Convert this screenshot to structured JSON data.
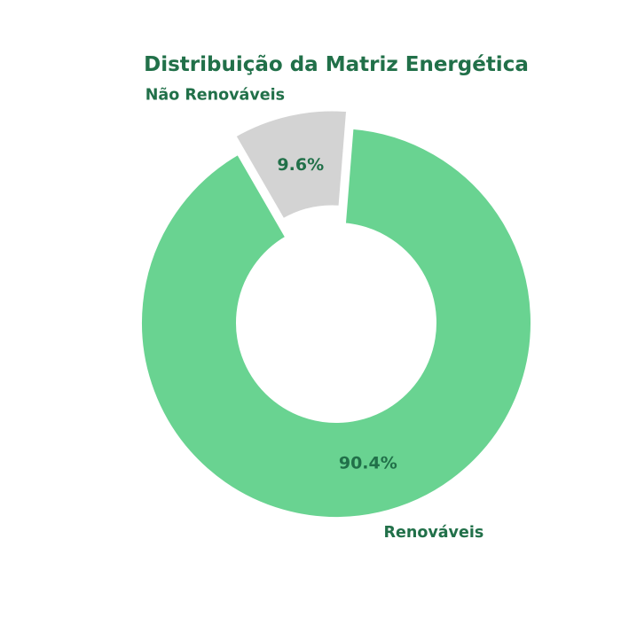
{
  "chart_data": {
    "type": "pie",
    "title": "Distribuição da Matriz Energética",
    "slices": [
      {
        "label": "Renováveis",
        "value": 90.4,
        "pct_label": "90.4%",
        "color": "#69d391"
      },
      {
        "label": "Não Renováveis",
        "value": 9.6,
        "pct_label": "9.6%",
        "color": "#d3d3d3"
      }
    ],
    "donut": true,
    "exploded": "Não Renováveis",
    "text_color": "#217049",
    "background": "#ffffff"
  }
}
